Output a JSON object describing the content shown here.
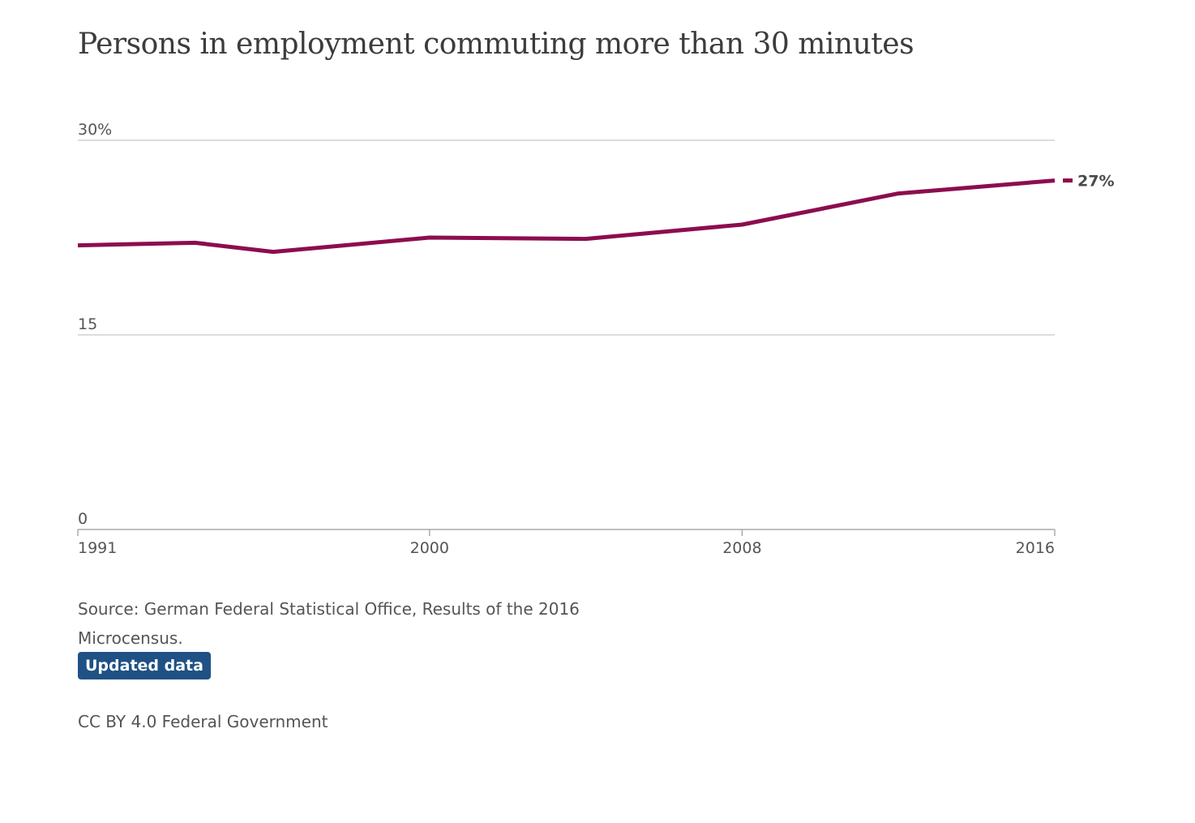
{
  "chart_data": {
    "type": "line",
    "title": "Persons in employment commuting more than 30 minutes",
    "xlabel": "",
    "ylabel": "",
    "xlim": [
      1991,
      2016
    ],
    "ylim": [
      0,
      30
    ],
    "x_ticks": [
      "1991",
      "2000",
      "2008",
      "2016"
    ],
    "x_tick_values": [
      1991,
      2000,
      2008,
      2016
    ],
    "y_ticks": [
      "0",
      "15",
      "30%"
    ],
    "y_tick_values": [
      0,
      15,
      30
    ],
    "grid": true,
    "series": [
      {
        "color": "#8c0d4e",
        "x": [
          1991,
          1994,
          1996,
          2000,
          2004,
          2008,
          2012,
          2016
        ],
        "y": [
          21.9,
          22.1,
          21.4,
          22.5,
          22.4,
          23.5,
          25.9,
          26.9
        ]
      }
    ],
    "end_label": "27%"
  },
  "footer": {
    "source": "Source: German Federal Statistical Office, Results of the 2016 Microcensus.",
    "badge": "Updated data",
    "license": "CC BY 4.0 Federal Government"
  }
}
